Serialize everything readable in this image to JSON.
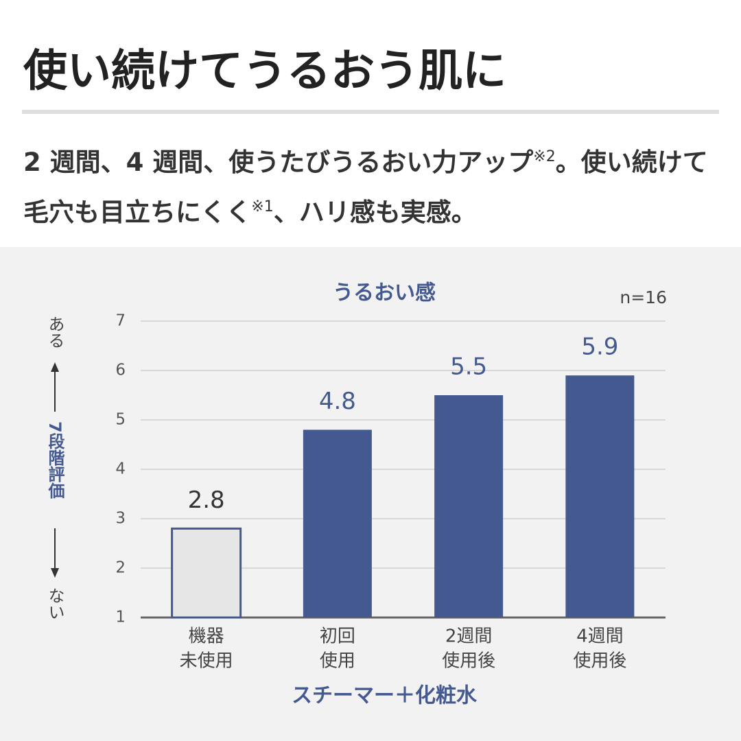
{
  "header": {
    "title": "使い続けてうるおう肌に",
    "subtitle": [
      "2 週間、4 週間、使うたびうるおい力アップ",
      "※2",
      "。使い続けて毛穴も目立ちにくく",
      "※1",
      "、ハリ感も実感。"
    ]
  },
  "chart_data": {
    "type": "bar",
    "title": "うるおい感",
    "note": "n=16",
    "y_label": {
      "top": "ある",
      "middle": "7段階評価",
      "bottom": "ない"
    },
    "x_label": "スチーマー＋化粧水",
    "categories": [
      [
        "機器",
        "未使用"
      ],
      [
        "初回",
        "使用"
      ],
      [
        "2週間",
        "使用後"
      ],
      [
        "4週間",
        "使用後"
      ]
    ],
    "values": [
      2.8,
      4.8,
      5.5,
      5.9
    ],
    "colors": [
      "#e6e6e6",
      "#44598f",
      "#44598f",
      "#44598f"
    ],
    "ylim": [
      1,
      7
    ],
    "yticks": [
      1,
      2,
      3,
      4,
      5,
      6,
      7
    ],
    "grid": true
  }
}
